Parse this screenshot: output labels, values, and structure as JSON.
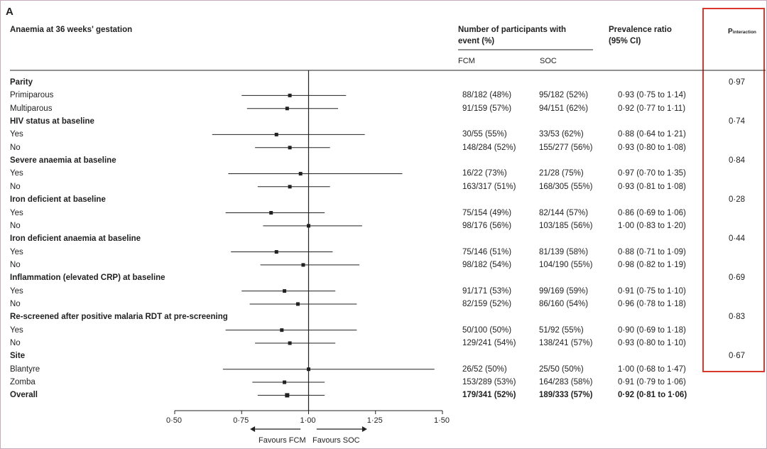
{
  "panel_label": "A",
  "chart_data": {
    "type": "forest",
    "title": "Anaemia at 36 weeks' gestation",
    "columns": {
      "participants_header": "Number of participants with event (%)",
      "participants_header_line1": "Number of participants with",
      "participants_header_line2": "event (%)",
      "fcm_label": "FCM",
      "soc_label": "SOC",
      "pr_header_line1": "Prevalence ratio",
      "pr_header_line2": "(95% CI)",
      "p_header_main": "P",
      "p_header_sub": "interaction"
    },
    "xaxis": {
      "ticks": [
        "0·50",
        "0·75",
        "1·00",
        "1·25",
        "1·50"
      ],
      "tick_values": [
        0.5,
        0.75,
        1.0,
        1.25,
        1.5
      ],
      "range": [
        0.5,
        1.5
      ],
      "reference": 1.0,
      "left_label": "Favours FCM",
      "right_label": "Favours SOC"
    },
    "groups": [
      {
        "name": "Parity",
        "p": "0·97",
        "rows": [
          {
            "label": "Primiparous",
            "fcm": "88/182 (48%)",
            "soc": "95/182 (52%)",
            "ci_text": "0·93 (0·75 to 1·14)",
            "est": 0.93,
            "lo": 0.75,
            "hi": 1.14
          },
          {
            "label": "Multiparous",
            "fcm": "91/159 (57%)",
            "soc": "94/151 (62%)",
            "ci_text": "0·92 (0·77 to 1·11)",
            "est": 0.92,
            "lo": 0.77,
            "hi": 1.11
          }
        ]
      },
      {
        "name": "HIV status at baseline",
        "p": "0·74",
        "rows": [
          {
            "label": "Yes",
            "fcm": "30/55 (55%)",
            "soc": "33/53 (62%)",
            "ci_text": "0·88 (0·64 to 1·21)",
            "est": 0.88,
            "lo": 0.64,
            "hi": 1.21
          },
          {
            "label": "No",
            "fcm": "148/284 (52%)",
            "soc": "155/277 (56%)",
            "ci_text": "0·93 (0·80 to 1·08)",
            "est": 0.93,
            "lo": 0.8,
            "hi": 1.08
          }
        ]
      },
      {
        "name": "Severe anaemia at baseline",
        "p": "0·84",
        "rows": [
          {
            "label": "Yes",
            "fcm": "16/22 (73%)",
            "soc": "21/28 (75%)",
            "ci_text": "0·97 (0·70 to 1·35)",
            "est": 0.97,
            "lo": 0.7,
            "hi": 1.35
          },
          {
            "label": "No",
            "fcm": "163/317 (51%)",
            "soc": "168/305 (55%)",
            "ci_text": "0·93 (0·81 to 1·08)",
            "est": 0.93,
            "lo": 0.81,
            "hi": 1.08
          }
        ]
      },
      {
        "name": "Iron deficient at baseline",
        "p": "0·28",
        "rows": [
          {
            "label": "Yes",
            "fcm": "75/154 (49%)",
            "soc": "82/144 (57%)",
            "ci_text": "0·86 (0·69 to 1·06)",
            "est": 0.86,
            "lo": 0.69,
            "hi": 1.06
          },
          {
            "label": "No",
            "fcm": "98/176 (56%)",
            "soc": "103/185 (56%)",
            "ci_text": "1·00 (0·83 to 1·20)",
            "est": 1.0,
            "lo": 0.83,
            "hi": 1.2
          }
        ]
      },
      {
        "name": "Iron deficient anaemia at baseline",
        "p": "0·44",
        "rows": [
          {
            "label": "Yes",
            "fcm": "75/146 (51%)",
            "soc": "81/139 (58%)",
            "ci_text": "0·88 (0·71 to 1·09)",
            "est": 0.88,
            "lo": 0.71,
            "hi": 1.09
          },
          {
            "label": "No",
            "fcm": "98/182 (54%)",
            "soc": "104/190 (55%)",
            "ci_text": "0·98 (0·82 to 1·19)",
            "est": 0.98,
            "lo": 0.82,
            "hi": 1.19
          }
        ]
      },
      {
        "name": "Inflammation (elevated CRP) at baseline",
        "p": "0·69",
        "rows": [
          {
            "label": "Yes",
            "fcm": "91/171 (53%)",
            "soc": "99/169 (59%)",
            "ci_text": "0·91 (0·75 to 1·10)",
            "est": 0.91,
            "lo": 0.75,
            "hi": 1.1
          },
          {
            "label": "No",
            "fcm": "82/159 (52%)",
            "soc": "86/160 (54%)",
            "ci_text": "0·96 (0·78 to 1·18)",
            "est": 0.96,
            "lo": 0.78,
            "hi": 1.18
          }
        ]
      },
      {
        "name": "Re-screened after positive malaria RDT at pre-screening",
        "p": "0·83",
        "rows": [
          {
            "label": "Yes",
            "fcm": "50/100 (50%)",
            "soc": "51/92 (55%)",
            "ci_text": "0·90 (0·69 to 1·18)",
            "est": 0.9,
            "lo": 0.69,
            "hi": 1.18
          },
          {
            "label": "No",
            "fcm": "129/241 (54%)",
            "soc": "138/241 (57%)",
            "ci_text": "0·93 (0·80 to 1·10)",
            "est": 0.93,
            "lo": 0.8,
            "hi": 1.1
          }
        ]
      },
      {
        "name": "Site",
        "p": "0·67",
        "rows": [
          {
            "label": "Blantyre",
            "fcm": "26/52 (50%)",
            "soc": "25/50 (50%)",
            "ci_text": "1·00 (0·68 to 1·47)",
            "est": 1.0,
            "lo": 0.68,
            "hi": 1.47
          },
          {
            "label": "Zomba",
            "fcm": "153/289 (53%)",
            "soc": "164/283 (58%)",
            "ci_text": "0·91 (0·79 to 1·06)",
            "est": 0.91,
            "lo": 0.79,
            "hi": 1.06
          }
        ]
      }
    ],
    "overall": {
      "label": "Overall",
      "fcm": "179/341 (52%)",
      "soc": "189/333 (57%)",
      "ci_text": "0·92 (0·81 to 1·06)",
      "est": 0.92,
      "lo": 0.81,
      "hi": 1.06
    },
    "highlight_color": "#d9382b"
  }
}
